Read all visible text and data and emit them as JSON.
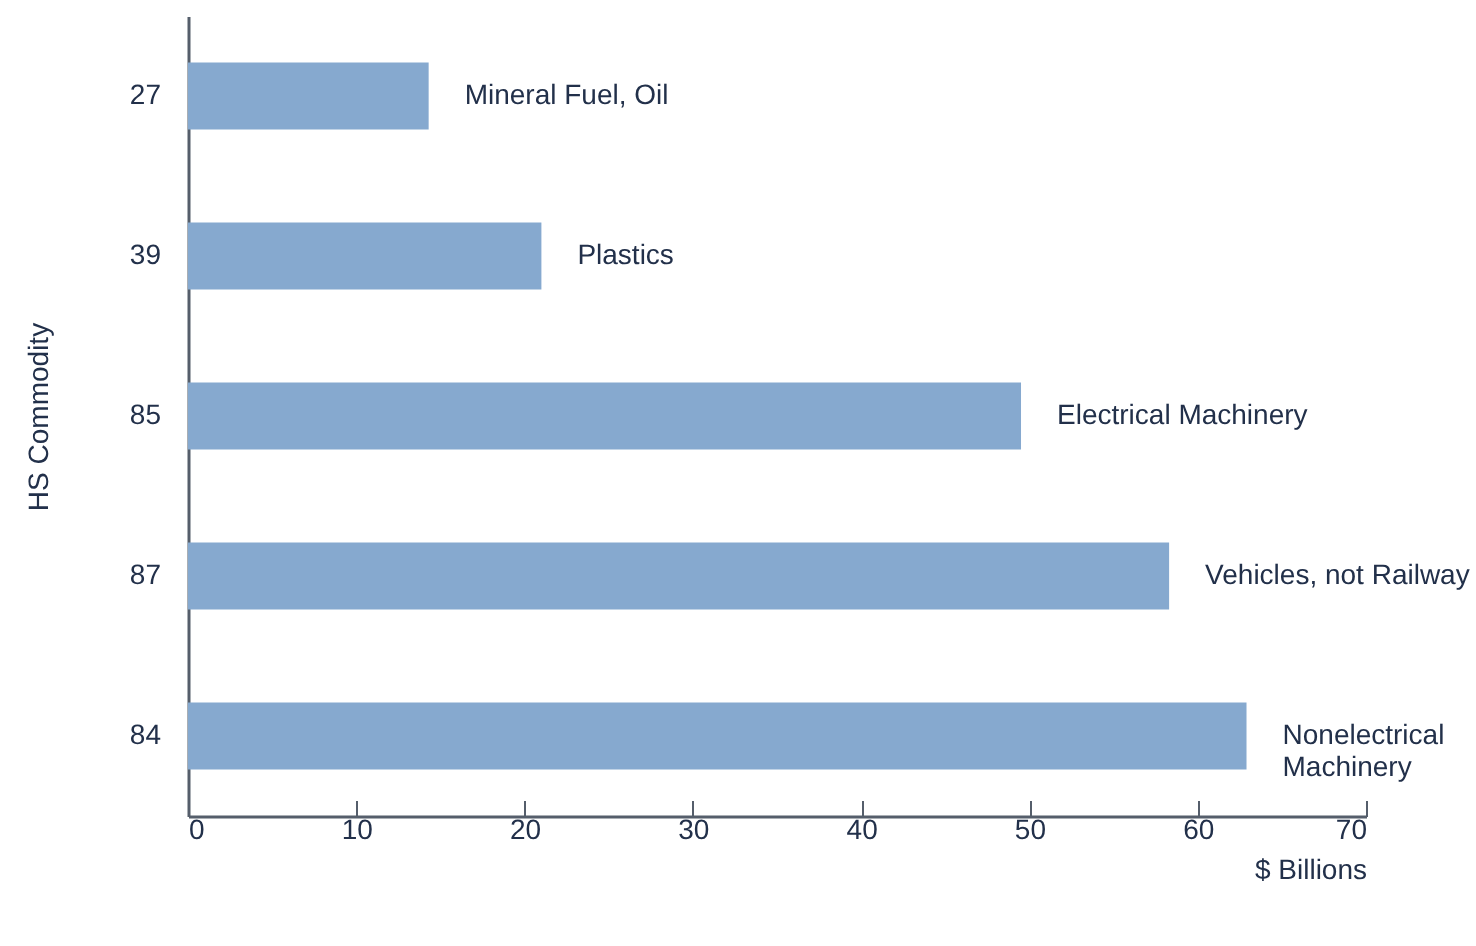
{
  "chart_data": {
    "type": "bar",
    "orientation": "horizontal",
    "ylabel": "HS Commodity",
    "xlabel": "$ Billions",
    "categories": [
      "27",
      "39",
      "85",
      "87",
      "84"
    ],
    "values": [
      14.3,
      21.0,
      49.5,
      58.3,
      62.9
    ],
    "color": "#86a9cf",
    "xlim": [
      0,
      70
    ],
    "xticks": [
      0,
      10,
      20,
      30,
      40,
      50,
      60,
      70
    ],
    "grid": false,
    "annotations": [
      {
        "text": "Mineral Fuel, Oil",
        "x": 14.3,
        "y": "27"
      },
      {
        "text": "Plastics",
        "x": 21.0,
        "y": "39"
      },
      {
        "text": "Electrical Machinery",
        "x": 49.5,
        "y": "85"
      },
      {
        "text": "Vehicles, not Railway",
        "x": 58.3,
        "y": "87"
      },
      {
        "text": "Nonelectrical\nMachinery",
        "x": 62.9,
        "y": "84"
      }
    ]
  }
}
